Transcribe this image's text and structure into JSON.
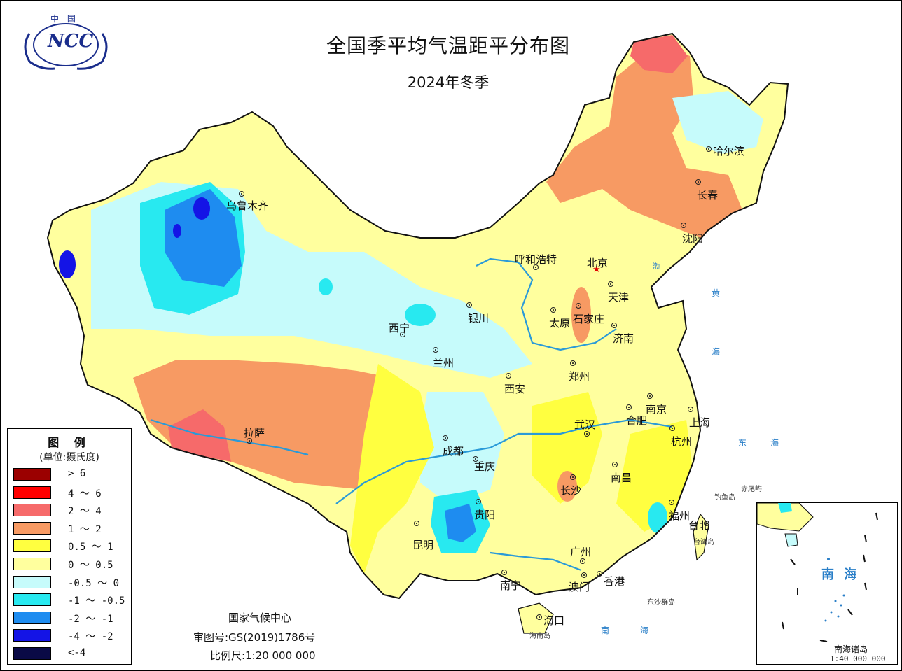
{
  "title": "全国季平均气温距平分布图",
  "subtitle": "2024年冬季",
  "logo": {
    "text": "中 国",
    "abbr": "NCC"
  },
  "legend": {
    "title": "图 例",
    "unit": "(单位:摄氏度)",
    "classes": [
      {
        "label": "> 6",
        "color": "#9b0000"
      },
      {
        "label": "4 ～ 6",
        "color": "#ff0000"
      },
      {
        "label": "2 ～ 4",
        "color": "#f66a6a"
      },
      {
        "label": "1 ～ 2",
        "color": "#f79a63"
      },
      {
        "label": "0.5 ～ 1",
        "color": "#ffff40"
      },
      {
        "label": "0 ～ 0.5",
        "color": "#ffff9e"
      },
      {
        "label": "-0.5 ～ 0",
        "color": "#c6fbfb"
      },
      {
        "label": "-1 ～ -0.5",
        "color": "#28e9f0"
      },
      {
        "label": "-2 ～ -1",
        "color": "#1e8cf0"
      },
      {
        "label": "-4 ～ -2",
        "color": "#1414e6"
      },
      {
        "label": "<-4",
        "color": "#0a0a46"
      }
    ]
  },
  "cities": [
    {
      "name": "乌鲁木齐",
      "id": "urumqi"
    },
    {
      "name": "哈尔滨",
      "id": "harbin"
    },
    {
      "name": "长春",
      "id": "changchun"
    },
    {
      "name": "沈阳",
      "id": "shenyang"
    },
    {
      "name": "呼和浩特",
      "id": "hohhot"
    },
    {
      "name": "北京",
      "id": "beijing"
    },
    {
      "name": "天津",
      "id": "tianjin"
    },
    {
      "name": "银川",
      "id": "yinchuan"
    },
    {
      "name": "太原",
      "id": "taiyuan"
    },
    {
      "name": "石家庄",
      "id": "shijiazhuang"
    },
    {
      "name": "西宁",
      "id": "xining"
    },
    {
      "name": "济南",
      "id": "jinan"
    },
    {
      "name": "兰州",
      "id": "lanzhou"
    },
    {
      "name": "郑州",
      "id": "zhengzhou"
    },
    {
      "name": "西安",
      "id": "xian"
    },
    {
      "name": "南京",
      "id": "nanjing"
    },
    {
      "name": "合肥",
      "id": "hefei"
    },
    {
      "name": "上海",
      "id": "shanghai"
    },
    {
      "name": "武汉",
      "id": "wuhan"
    },
    {
      "name": "杭州",
      "id": "hangzhou"
    },
    {
      "name": "拉萨",
      "id": "lhasa"
    },
    {
      "name": "成都",
      "id": "chengdu"
    },
    {
      "name": "重庆",
      "id": "chongqing"
    },
    {
      "name": "南昌",
      "id": "nanchang"
    },
    {
      "name": "长沙",
      "id": "changsha"
    },
    {
      "name": "贵阳",
      "id": "guiyang"
    },
    {
      "name": "福州",
      "id": "fuzhou"
    },
    {
      "name": "台北",
      "id": "taipei"
    },
    {
      "name": "昆明",
      "id": "kunming"
    },
    {
      "name": "广州",
      "id": "guangzhou"
    },
    {
      "name": "南宁",
      "id": "nanning"
    },
    {
      "name": "澳门",
      "id": "macau"
    },
    {
      "name": "香港",
      "id": "hongkong"
    },
    {
      "name": "海口",
      "id": "haikou"
    }
  ],
  "sea_labels": {
    "huanghai_1": "黄",
    "huanghai_2": "海",
    "donghai_1": "东",
    "donghai_2": "海",
    "nanhai_1": "南",
    "nanhai_2": "海",
    "bohai": "渤",
    "taiwan": "台湾岛",
    "hainan": "海南岛",
    "diaoyu": "钓鱼岛",
    "chiwei": "赤尾屿",
    "dongsha": "东沙群岛"
  },
  "footer": {
    "org": "国家气候中心",
    "review": "审图号:GS(2019)1786号",
    "scale": "比例尺:1:20 000 000"
  },
  "inset": {
    "name": "南 海",
    "islands": "南海诸岛",
    "scale": "1:40 000 000"
  }
}
